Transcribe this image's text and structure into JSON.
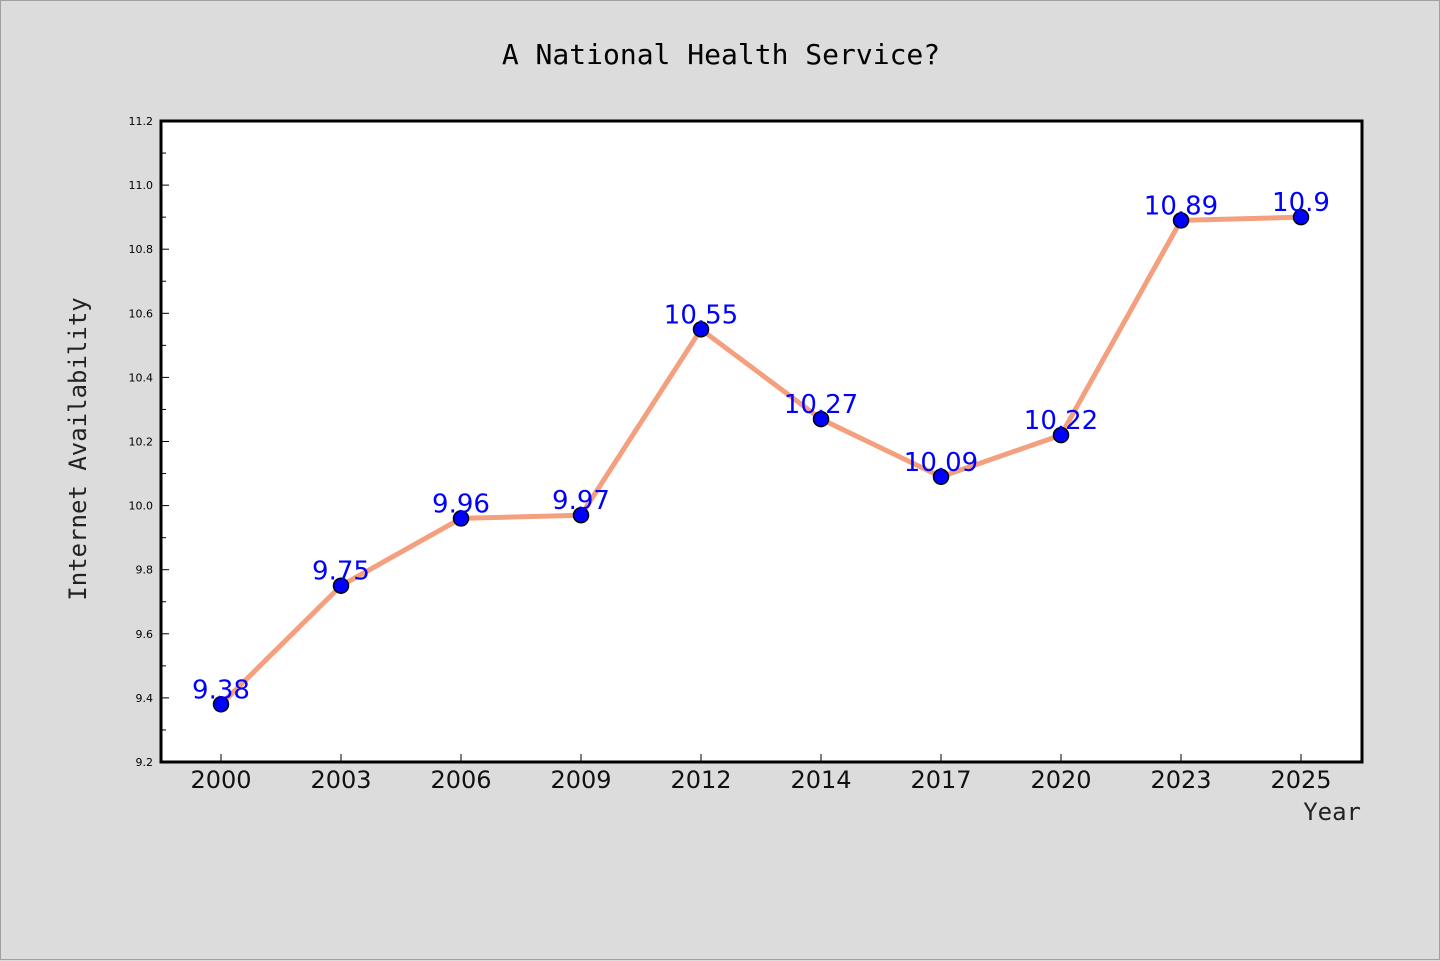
{
  "chart_data": {
    "type": "line",
    "title": "A National Health Service?",
    "xlabel": "Year",
    "ylabel": "Internet Availability",
    "categories": [
      "2000",
      "2003",
      "2006",
      "2009",
      "2012",
      "2014",
      "2017",
      "2020",
      "2023",
      "2025"
    ],
    "series": [
      {
        "values": [
          9.38,
          9.75,
          9.96,
          9.97,
          10.55,
          10.27,
          10.09,
          10.22,
          10.89,
          10.9
        ],
        "labels": [
          "9.38",
          "9.75",
          "9.96",
          "9.97",
          "10.55",
          "10.27",
          "10.09",
          "10.22",
          "10.89",
          "10.9"
        ]
      }
    ],
    "ylim": [
      9.2,
      11.2
    ],
    "yticks": [
      "9.2",
      "9.4",
      "9.6",
      "9.8",
      "10.0",
      "10.2",
      "10.4",
      "10.6",
      "10.8",
      "11.0",
      "11.2"
    ],
    "grid": false,
    "colors": {
      "line": "#f4a07e",
      "marker": "#0000ff",
      "data_label": "#0000ff",
      "background": "#dcdcdc",
      "plot_background": "#ffffff"
    }
  }
}
